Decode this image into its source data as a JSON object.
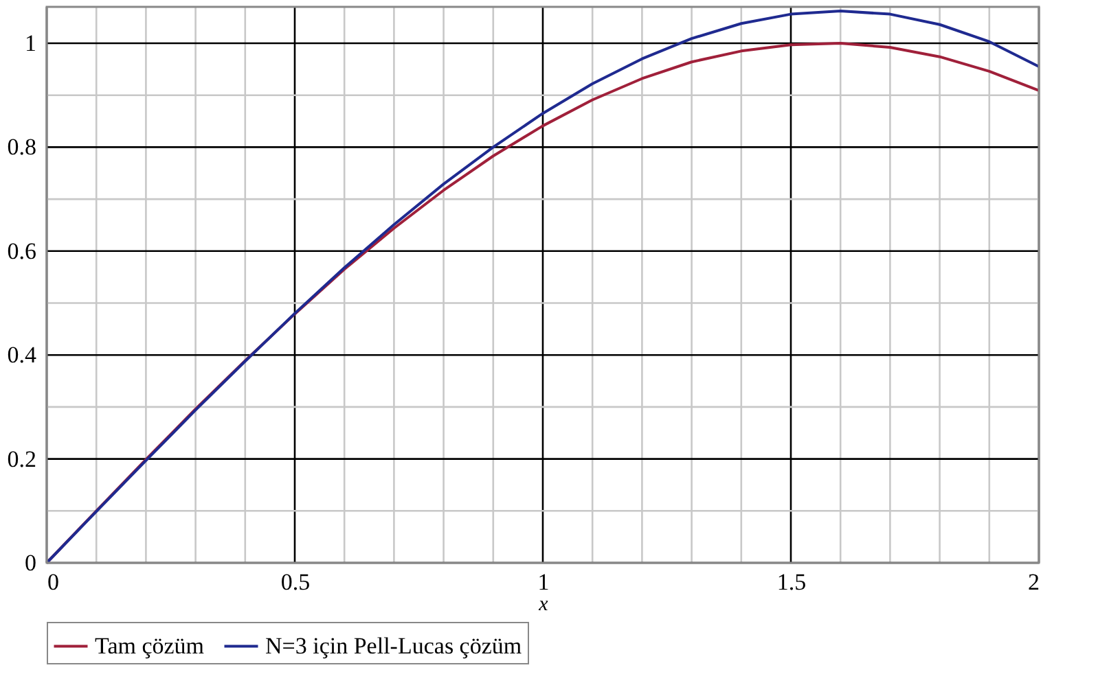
{
  "chart_data": {
    "type": "line",
    "xlabel": "x",
    "x": [
      0,
      0.1,
      0.2,
      0.3,
      0.4,
      0.5,
      0.6,
      0.7,
      0.8,
      0.9,
      1.0,
      1.1,
      1.2,
      1.3,
      1.4,
      1.5,
      1.6,
      1.7,
      1.8,
      1.9,
      2.0
    ],
    "series": [
      {
        "name": "Tam çözüm",
        "color": "#a0203a",
        "values": [
          0,
          0.1,
          0.199,
          0.296,
          0.389,
          0.479,
          0.565,
          0.644,
          0.717,
          0.783,
          0.841,
          0.891,
          0.932,
          0.964,
          0.985,
          0.997,
          1.0,
          0.992,
          0.974,
          0.946,
          0.909
        ]
      },
      {
        "name": "N=3 için Pell-Lucas çözüm",
        "color": "#1f2a90",
        "values": [
          0,
          0.099,
          0.197,
          0.294,
          0.388,
          0.48,
          0.568,
          0.651,
          0.729,
          0.8,
          0.865,
          0.922,
          0.97,
          1.009,
          1.038,
          1.056,
          1.062,
          1.056,
          1.036,
          1.003,
          0.955
        ]
      }
    ],
    "xlim": [
      0,
      2
    ],
    "ylim": [
      0,
      1.07
    ],
    "xticks": [
      0,
      {
        "value": 0.1,
        "label": null
      },
      {
        "value": 0.2,
        "label": null
      },
      {
        "value": 0.3,
        "label": null
      },
      {
        "value": 0.4,
        "label": null
      },
      0.5,
      {
        "value": 0.6,
        "label": null
      },
      {
        "value": 0.7,
        "label": null
      },
      {
        "value": 0.8,
        "label": null
      },
      {
        "value": 0.9,
        "label": null
      },
      1,
      {
        "value": 1.1,
        "label": null
      },
      {
        "value": 1.2,
        "label": null
      },
      {
        "value": 1.3,
        "label": null
      },
      {
        "value": 1.4,
        "label": null
      },
      1.5,
      {
        "value": 1.6,
        "label": null
      },
      {
        "value": 1.7,
        "label": null
      },
      {
        "value": 1.8,
        "label": null
      },
      {
        "value": 1.9,
        "label": null
      },
      2
    ],
    "yticks": [
      0,
      {
        "value": 0.1,
        "label": null
      },
      0.2,
      {
        "value": 0.3,
        "label": null
      },
      0.4,
      {
        "value": 0.5,
        "label": null
      },
      0.6,
      {
        "value": 0.7,
        "label": null
      },
      0.8,
      {
        "value": 0.9,
        "label": null
      },
      1
    ],
    "grid": true,
    "legend": "bottom",
    "line_style": "solid",
    "marker": "none"
  }
}
